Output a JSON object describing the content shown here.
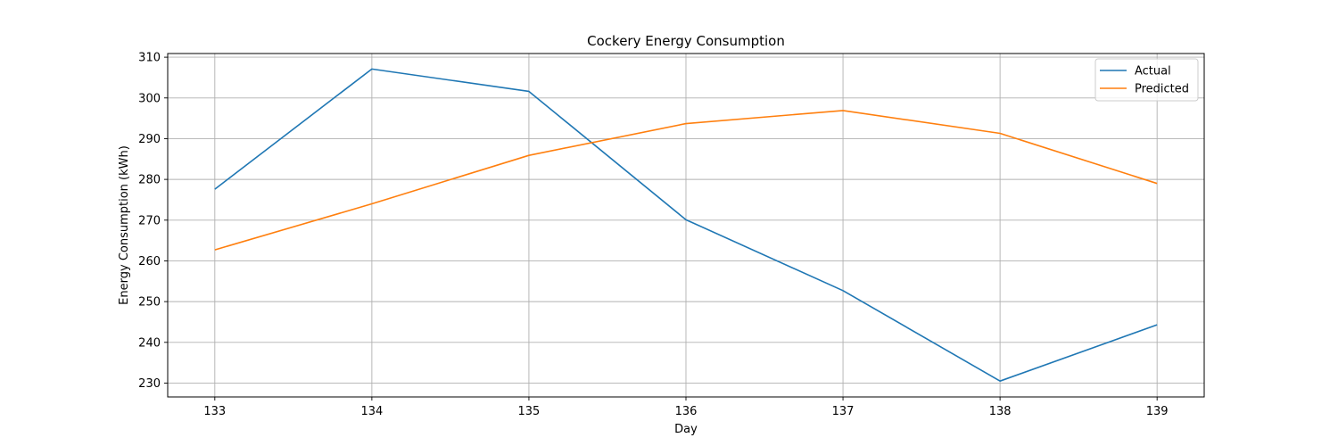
{
  "chart_data": {
    "type": "line",
    "title": "Cockery Energy Consumption",
    "xlabel": "Day",
    "ylabel": "Energy Consumption (kWh)",
    "x": [
      133,
      134,
      135,
      136,
      137,
      138,
      139
    ],
    "x_ticks": [
      "133",
      "134",
      "135",
      "136",
      "137",
      "138",
      "139"
    ],
    "xlim": [
      132.7,
      139.3
    ],
    "y_ticks": [
      "230",
      "240",
      "250",
      "260",
      "270",
      "280",
      "290",
      "300",
      "310"
    ],
    "ylim": [
      226.6,
      310.9
    ],
    "grid": true,
    "legend_position": "top-right",
    "series": [
      {
        "name": "Actual",
        "color": "#1f77b4",
        "values": [
          277.6,
          307.1,
          301.6,
          270.1,
          252.7,
          230.5,
          244.3
        ]
      },
      {
        "name": "Predicted",
        "color": "#ff7f0e",
        "values": [
          262.7,
          274.0,
          285.9,
          293.7,
          296.9,
          291.3,
          279.0
        ]
      }
    ]
  }
}
